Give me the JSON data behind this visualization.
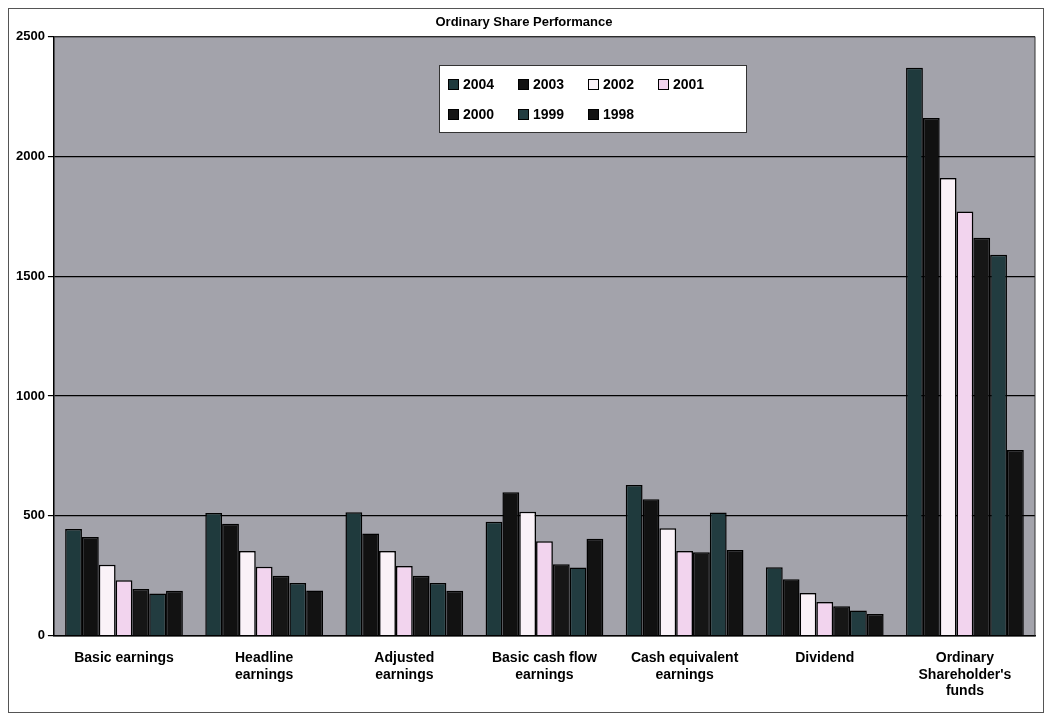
{
  "chart_data": {
    "type": "bar",
    "title": "Ordinary Share Performance",
    "categories": [
      "Basic earnings",
      "Headline earnings",
      "Adjusted earnings",
      "Basic cash flow earnings",
      "Cash equivalent earnings",
      "Dividend",
      "Ordinary Shareholder's funds"
    ],
    "series": [
      {
        "name": "2004",
        "color": "#1f3a3d",
        "values": [
          445,
          512,
          515,
          475,
          629,
          285,
          2370
        ]
      },
      {
        "name": "2003",
        "color": "#111111",
        "values": [
          411,
          467,
          426,
          598,
          569,
          235,
          2160
        ]
      },
      {
        "name": "2002",
        "color": "#faf2f8",
        "values": [
          296,
          353,
          353,
          517,
          448,
          178,
          1910
        ]
      },
      {
        "name": "2001",
        "color": "#f2d4ee",
        "values": [
          231,
          287,
          291,
          394,
          353,
          140,
          1770
        ]
      },
      {
        "name": "2000",
        "color": "#161616",
        "values": [
          194,
          250,
          250,
          298,
          348,
          123,
          1660
        ]
      },
      {
        "name": "1999",
        "color": "#223c40",
        "values": [
          176,
          220,
          220,
          284,
          514,
          105,
          1590
        ]
      },
      {
        "name": "1998",
        "color": "#121212",
        "values": [
          187,
          188,
          187,
          404,
          357,
          90,
          775
        ]
      }
    ],
    "ylim": [
      0,
      2500
    ],
    "yticks": [
      0,
      500,
      1000,
      1500,
      2000,
      2500
    ],
    "grid": "y",
    "legend": "top"
  }
}
